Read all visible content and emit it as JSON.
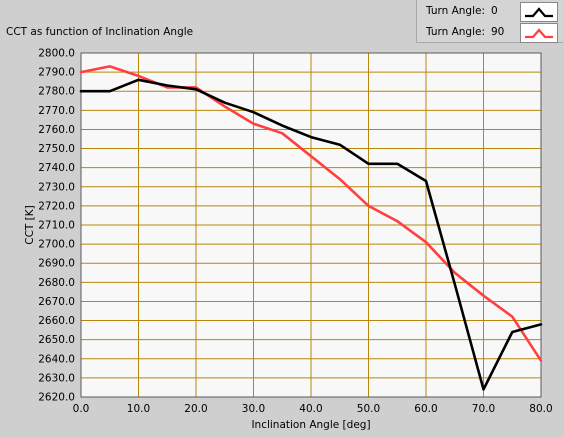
{
  "panel": {
    "title": "CCT as function of Inclination Angle"
  },
  "legend": {
    "entries": [
      {
        "label": "Turn Angle:",
        "value": "0",
        "color": "#000000"
      },
      {
        "label": "Turn Angle:",
        "value": "90",
        "color": "#ff4040"
      }
    ]
  },
  "colors": {
    "plot_background": "#f8f8f8",
    "grid": "#b8860b",
    "frame": "#000000"
  },
  "chart_data": {
    "type": "line",
    "title": "CCT as function of Inclination Angle",
    "xlabel": "Inclination Angle [deg]",
    "ylabel": "CCT [K]",
    "xlim": [
      0,
      80
    ],
    "ylim": [
      2620,
      2800
    ],
    "x_ticks": [
      0,
      10,
      20,
      30,
      40,
      50,
      60,
      70,
      80
    ],
    "x_tick_labels": [
      "0.0",
      "10.0",
      "20.0",
      "30.0",
      "40.0",
      "50.0",
      "60.0",
      "70.0",
      "80.0"
    ],
    "y_ticks": [
      2620,
      2630,
      2640,
      2650,
      2660,
      2670,
      2680,
      2690,
      2700,
      2710,
      2720,
      2730,
      2740,
      2750,
      2760,
      2770,
      2780,
      2790,
      2800
    ],
    "y_tick_labels": [
      "2620.0",
      "2630.0",
      "2640.0",
      "2650.0",
      "2660.0",
      "2670.0",
      "2680.0",
      "2690.0",
      "2700.0",
      "2710.0",
      "2720.0",
      "2730.0",
      "2740.0",
      "2750.0",
      "2760.0",
      "2770.0",
      "2780.0",
      "2790.0",
      "2800.0"
    ],
    "grid": true,
    "series": [
      {
        "name": "Turn Angle: 0",
        "color": "#000000",
        "x": [
          0,
          5,
          10,
          15,
          20,
          25,
          30,
          35,
          40,
          45,
          50,
          55,
          60,
          65,
          70,
          75,
          80
        ],
        "y": [
          2780,
          2780,
          2786,
          2783,
          2781,
          2774,
          2769,
          2762,
          2756,
          2752,
          2742,
          2742,
          2733,
          2679,
          2624,
          2654,
          2658
        ]
      },
      {
        "name": "Turn Angle: 90",
        "color": "#ff4040",
        "x": [
          0,
          5,
          10,
          15,
          20,
          25,
          30,
          35,
          40,
          45,
          50,
          55,
          60,
          65,
          70,
          75,
          80
        ],
        "y": [
          2790,
          2793,
          2788,
          2782,
          2782,
          2772,
          2763,
          2758,
          2746,
          2734,
          2720,
          2712,
          2701,
          2685,
          2673,
          2662,
          2639
        ]
      }
    ]
  }
}
